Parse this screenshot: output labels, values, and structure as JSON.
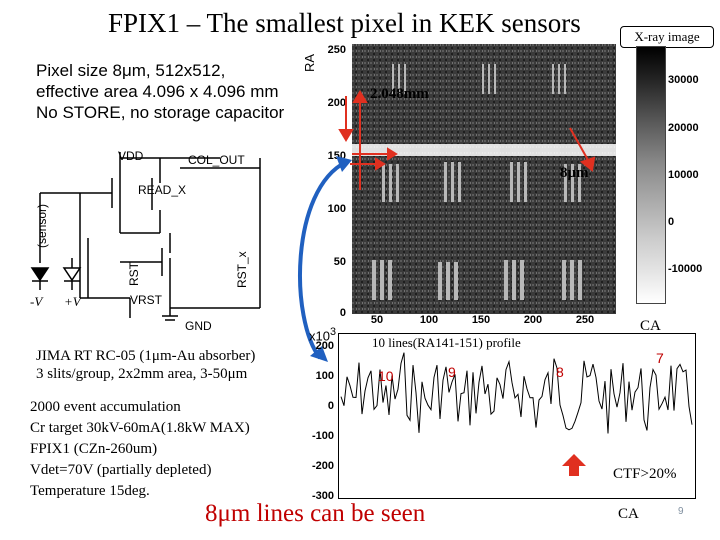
{
  "slide": {
    "title": "FPIX1 – The smallest pixel in KEK sensors",
    "xray_label": "X-ray image",
    "description": [
      "Pixel size 8μm, 512x512,",
      "effective area 4.096 x 4.096 mm",
      "No STORE, no storage capacitor"
    ],
    "experiment": [
      "JIMA RT RC-05 (1μm-Au absorber)",
      "3 slits/group, 2x2mm area, 3-50μm"
    ],
    "conditions": [
      "2000 event accumulation",
      "Cr target 30kV-60mA(1.8kW MAX)",
      "FPIX1 (CZn-260um)",
      "Vdet=70V (partially depleted)",
      "Temperature 15deg."
    ],
    "bottom_caption": "8μm lines can be seen",
    "page_number": "9"
  },
  "circuit": {
    "vdd": "VDD",
    "col_out": "COL_OUT",
    "read_x": "READ_X",
    "rst": "RST",
    "rst_x": "RST_x",
    "vrst": "VRST",
    "gnd": "GND",
    "sensor": "(sensor)",
    "minus_v": "-V",
    "plus_v": "+V"
  },
  "xray_image": {
    "y_axis_label": "RA",
    "y_ticks": [
      "250",
      "200",
      "150",
      "100",
      "50",
      "0"
    ],
    "x_ticks": [
      "50",
      "100",
      "150",
      "200",
      "250"
    ],
    "colorbar_ticks": [
      "30000",
      "20000",
      "10000",
      "0",
      "-10000"
    ],
    "annotation_size": "2.048mm",
    "annotation_pitch": "8μm",
    "x_axis_label": "CA"
  },
  "profile_plot": {
    "multiplier": "x10",
    "multiplier_exp": "3",
    "title": "10 lines(RA141-151) profile",
    "y_ticks": [
      "200",
      "100",
      "0",
      "-100",
      "-200",
      "-300"
    ],
    "group_labels": [
      "10",
      "9",
      "8",
      "7"
    ],
    "ctf": "CTF>20%",
    "x_axis_label": "CA"
  },
  "colors": {
    "annotation_red": "#c00000",
    "arrow_blue": "#2060c0",
    "arrow_red": "#e03020"
  }
}
